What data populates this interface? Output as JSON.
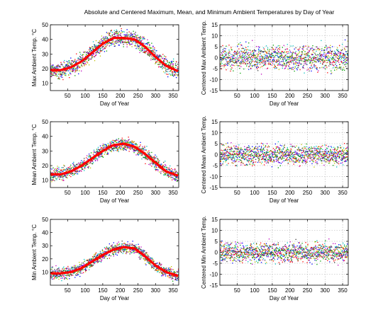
{
  "figure_title": "Absolute and Centered Maximum, Mean, and Minimum Ambient Temperatures by Day of Year",
  "colors": {
    "fit_line": "#ff0000",
    "grid": "#b0b0b0",
    "series_palette": [
      "#0000ff",
      "#00a000",
      "#ff0000",
      "#00bfbf",
      "#bf00bf",
      "#bfbf00",
      "#404040"
    ]
  },
  "chart_data": [
    {
      "type": "scatter",
      "panel": "absolute-max",
      "title": "",
      "xlabel": "Day of Year",
      "ylabel": "Max Ambient Temp. °C",
      "xlim": [
        1,
        366
      ],
      "ylim": [
        5,
        50
      ],
      "xticks": [
        50,
        100,
        150,
        200,
        250,
        300,
        350
      ],
      "yticks": [
        10,
        20,
        30,
        40,
        50
      ],
      "grid": false,
      "fit_curve": {
        "x": [
          1,
          30,
          60,
          90,
          120,
          150,
          180,
          210,
          240,
          270,
          300,
          330,
          366
        ],
        "y": [
          19,
          19,
          21,
          25,
          31,
          37,
          41,
          41,
          40,
          35,
          28,
          22,
          18
        ]
      },
      "scatter_spread": 4.5
    },
    {
      "type": "scatter",
      "panel": "centered-max",
      "title": "",
      "xlabel": "Day of Year",
      "ylabel": "Centered Max Ambient Temp.",
      "xlim": [
        1,
        366
      ],
      "ylim": [
        -15,
        15
      ],
      "xticks": [
        50,
        100,
        150,
        200,
        250,
        300,
        350
      ],
      "yticks": [
        -15,
        -10,
        -5,
        0,
        5,
        10,
        15
      ],
      "grid": true,
      "fit_curve": {
        "x": [
          1,
          366
        ],
        "y": [
          0,
          0
        ]
      },
      "scatter_spread": 4.5
    },
    {
      "type": "scatter",
      "panel": "absolute-mean",
      "title": "",
      "xlabel": "Day of Year",
      "ylabel": "Mean Ambient Temp. °C",
      "xlim": [
        1,
        366
      ],
      "ylim": [
        5,
        50
      ],
      "xticks": [
        50,
        100,
        150,
        200,
        250,
        300,
        350
      ],
      "yticks": [
        10,
        20,
        30,
        40,
        50
      ],
      "grid": false,
      "fit_curve": {
        "x": [
          1,
          30,
          60,
          90,
          120,
          150,
          180,
          210,
          240,
          270,
          300,
          330,
          366
        ],
        "y": [
          14,
          14,
          16,
          20,
          25,
          30,
          34,
          35,
          33,
          28,
          22,
          16,
          13
        ]
      },
      "scatter_spread": 3.5
    },
    {
      "type": "scatter",
      "panel": "centered-mean",
      "title": "",
      "xlabel": "Day of Year",
      "ylabel": "Centered Mean Ambient Temp.",
      "xlim": [
        1,
        366
      ],
      "ylim": [
        -15,
        15
      ],
      "xticks": [
        50,
        100,
        150,
        200,
        250,
        300,
        350
      ],
      "yticks": [
        -15,
        -10,
        -5,
        0,
        5,
        10,
        15
      ],
      "grid": true,
      "fit_curve": {
        "x": [
          1,
          366
        ],
        "y": [
          0,
          0
        ]
      },
      "scatter_spread": 3.5
    },
    {
      "type": "scatter",
      "panel": "absolute-min",
      "title": "",
      "xlabel": "Day of Year",
      "ylabel": "Min Ambient Temp. °C",
      "xlim": [
        1,
        366
      ],
      "ylim": [
        0,
        50
      ],
      "xticks": [
        50,
        100,
        150,
        200,
        250,
        300,
        350
      ],
      "yticks": [
        10,
        20,
        30,
        40,
        50
      ],
      "grid": false,
      "fit_curve": {
        "x": [
          1,
          30,
          60,
          90,
          120,
          150,
          180,
          210,
          240,
          270,
          300,
          330,
          366
        ],
        "y": [
          9,
          9,
          10,
          13,
          18,
          23,
          27,
          29,
          28,
          22,
          15,
          10,
          7
        ]
      },
      "scatter_spread": 3.5
    },
    {
      "type": "scatter",
      "panel": "centered-min",
      "title": "",
      "xlabel": "Day of Year",
      "ylabel": "Centered Min Ambient Temp.",
      "xlim": [
        1,
        366
      ],
      "ylim": [
        -15,
        15
      ],
      "xticks": [
        50,
        100,
        150,
        200,
        250,
        300,
        350
      ],
      "yticks": [
        -15,
        -10,
        -5,
        0,
        5,
        10,
        15
      ],
      "grid": true,
      "fit_curve": {
        "x": [
          1,
          366
        ],
        "y": [
          0,
          0
        ]
      },
      "scatter_spread": 3.5
    }
  ]
}
